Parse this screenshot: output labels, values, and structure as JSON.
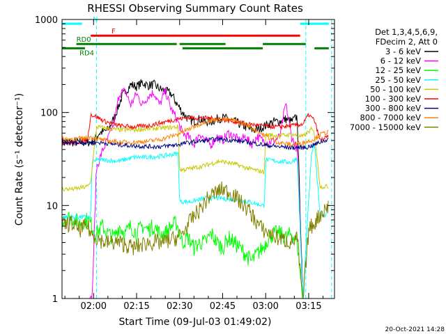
{
  "title": "RHESSI Observing Summary Count Rates",
  "xlabel": "Start Time (09-Jul-03 01:49:02)",
  "ylabel": "Count Rate (s⁻¹ detector⁻¹)",
  "footer_date": "20-Oct-2021 14:28",
  "chart_data": {
    "type": "line",
    "title": "RHESSI Observing Summary Count Rates",
    "xlabel": "Start Time (09-Jul-03 01:49:02)",
    "ylabel": "Count Rate (s⁻¹ detector⁻¹)",
    "x_unit": "minutes after 01:49:02 UT",
    "xlim": [
      0,
      95
    ],
    "ylim": [
      1,
      1000
    ],
    "yscale": "log",
    "x_ticks": [
      {
        "v": 11,
        "label": "02:00"
      },
      {
        "v": 26,
        "label": "02:15"
      },
      {
        "v": 41,
        "label": "02:30"
      },
      {
        "v": 56,
        "label": "02:45"
      },
      {
        "v": 71,
        "label": "03:00"
      },
      {
        "v": 86,
        "label": "03:15"
      }
    ],
    "y_ticks": [
      {
        "v": 1,
        "label": "1"
      },
      {
        "v": 10,
        "label": "10"
      },
      {
        "v": 100,
        "label": "100"
      },
      {
        "v": 1000,
        "label": "1000"
      }
    ],
    "legend_header": [
      "Det 1,3,4,5,6,9,",
      "FDecim 2, Att 0"
    ],
    "legend_position": "right",
    "series": [
      {
        "name": "3 - 6 keV",
        "color": "#000000",
        "x": [
          0,
          9,
          10.5,
          13,
          16,
          18,
          21,
          24,
          26,
          28,
          30,
          32,
          34,
          36,
          38,
          40,
          42,
          44,
          46,
          48,
          50,
          52,
          54,
          56,
          58,
          60,
          62,
          64,
          66,
          68,
          70,
          72,
          74,
          76,
          78,
          80,
          82,
          84
        ],
        "y": [
          48,
          48,
          48,
          60,
          65,
          85,
          150,
          200,
          190,
          210,
          195,
          200,
          180,
          170,
          160,
          125,
          100,
          85,
          80,
          85,
          80,
          80,
          85,
          88,
          85,
          80,
          75,
          70,
          65,
          65,
          70,
          75,
          80,
          80,
          85,
          80,
          90,
          0.9
        ]
      },
      {
        "name": "6 - 12 keV",
        "color": "#ff00ff",
        "x": [
          0,
          9,
          10.5,
          12,
          14,
          16,
          18,
          20,
          22,
          24,
          26,
          28,
          30,
          32,
          34,
          36,
          38,
          40,
          42,
          44,
          46,
          48,
          50,
          52,
          54,
          56,
          58,
          60,
          62,
          64,
          66,
          68,
          70,
          72,
          74,
          76,
          78,
          80,
          82,
          84
        ],
        "y": [
          0.9,
          0.9,
          1,
          25,
          38,
          52,
          75,
          160,
          170,
          120,
          160,
          120,
          150,
          165,
          120,
          170,
          110,
          85,
          60,
          55,
          45,
          60,
          50,
          45,
          55,
          50,
          60,
          55,
          50,
          55,
          45,
          55,
          50,
          48,
          50,
          55,
          125,
          55,
          40,
          0.9
        ]
      },
      {
        "name": "12 - 25 keV",
        "color": "#00ff00",
        "x": [
          0,
          3,
          6,
          9,
          10.5,
          12,
          14,
          16,
          18,
          20,
          22,
          24,
          26,
          28,
          30,
          32,
          34,
          36,
          38,
          40,
          41,
          42,
          44,
          46,
          48,
          50,
          52,
          54,
          56,
          58,
          60,
          62,
          64,
          66,
          68,
          70,
          72,
          74,
          76,
          78,
          80,
          82,
          84
        ],
        "y": [
          7,
          7.5,
          6.5,
          7,
          6,
          5,
          6,
          5,
          4.5,
          6,
          5,
          6,
          5,
          6,
          5.5,
          6,
          5,
          5,
          6,
          6.5,
          5,
          4,
          4.5,
          3.5,
          4,
          4,
          5,
          4,
          3.5,
          4.5,
          4,
          3.5,
          3,
          2.5,
          3,
          3.5,
          4.5,
          5,
          5,
          4.5,
          5,
          4,
          0.9
        ]
      },
      {
        "name": "25 - 50 keV",
        "color": "#00ffff",
        "x": [
          0,
          10,
          10.5,
          13,
          20,
          25,
          30,
          35,
          40,
          40.5,
          41,
          45,
          50,
          55,
          60,
          65,
          70,
          70.5,
          71,
          75,
          80,
          82,
          84,
          87,
          88,
          90,
          92,
          93
        ],
        "y": [
          7.5,
          7.5,
          30,
          31,
          30,
          33,
          33,
          34,
          36,
          36,
          11,
          11,
          12,
          12,
          11.5,
          11,
          10,
          10,
          31,
          30,
          29,
          33,
          1,
          37,
          45,
          8,
          8,
          9
        ]
      },
      {
        "name": "50 - 100 keV",
        "color": "#c8c800",
        "x": [
          0,
          4,
          9,
          10,
          12,
          15,
          20,
          25,
          30,
          35,
          40,
          40.5,
          41,
          45,
          50,
          55,
          60,
          65,
          70,
          70.5,
          71,
          75,
          80,
          84,
          87,
          88,
          90,
          92,
          93
        ],
        "y": [
          15,
          15,
          16,
          18,
          70,
          68,
          65,
          65,
          67,
          68,
          70,
          70,
          24,
          25,
          27,
          30,
          28,
          25,
          23,
          23,
          58,
          56,
          58,
          55,
          66,
          60,
          16,
          16,
          16
        ]
      },
      {
        "name": "100 - 300 keV",
        "color": "#ff0000",
        "x": [
          0,
          5,
          9,
          10,
          12,
          15,
          20,
          25,
          30,
          35,
          40,
          45,
          50,
          55,
          60,
          65,
          70,
          75,
          80,
          84,
          86,
          88,
          90,
          93
        ],
        "y": [
          47,
          47,
          52,
          95,
          90,
          80,
          72,
          70,
          72,
          78,
          85,
          88,
          87,
          85,
          80,
          75,
          72,
          70,
          72,
          75,
          95,
          82,
          50,
          55
        ]
      },
      {
        "name": "300 - 800 keV",
        "color": "#000080",
        "x": [
          0,
          5,
          10,
          15,
          20,
          25,
          30,
          35,
          40,
          45,
          50,
          55,
          60,
          65,
          70,
          75,
          80,
          85,
          88,
          90,
          93
        ],
        "y": [
          47,
          47,
          48,
          47,
          45,
          44,
          43,
          43,
          45,
          48,
          50,
          52,
          50,
          48,
          45,
          43,
          42,
          42,
          45,
          48,
          52
        ]
      },
      {
        "name": "800 - 7000 keV",
        "color": "#ff8000",
        "x": [
          0,
          5,
          10,
          15,
          20,
          25,
          30,
          35,
          40,
          45,
          50,
          55,
          60,
          65,
          70,
          75,
          80,
          85,
          88,
          90,
          93
        ],
        "y": [
          52,
          52,
          54,
          50,
          48,
          48,
          49,
          52,
          58,
          68,
          80,
          85,
          82,
          72,
          58,
          48,
          45,
          48,
          52,
          58,
          62
        ]
      },
      {
        "name": "7000 - 15000 keV",
        "color": "#808000",
        "x": [
          0,
          3,
          6,
          9,
          10,
          12,
          15,
          20,
          25,
          30,
          35,
          40,
          42,
          45,
          48,
          50,
          52,
          54,
          56,
          58,
          60,
          62,
          65,
          68,
          70,
          75,
          80,
          82,
          84,
          86,
          88,
          90,
          93
        ],
        "y": [
          6,
          6.5,
          5.5,
          6,
          5,
          4.5,
          4,
          4,
          3.5,
          4,
          4,
          4.5,
          5,
          7,
          9,
          11,
          13,
          14,
          15,
          14,
          13,
          11,
          9,
          6.5,
          5.5,
          4.5,
          4,
          4.5,
          0.9,
          5.5,
          6.5,
          8,
          10
        ]
      }
    ],
    "annotations": [
      {
        "label": "N",
        "color": "#00ffff",
        "x": [
          0,
          7
        ],
        "level": 900
      },
      {
        "label": "",
        "color": "#00ffff",
        "x": [
          83,
          93
        ],
        "level": 900
      },
      {
        "label": "F",
        "color": "#ff0000",
        "x": [
          10,
          83
        ],
        "level": 670
      },
      {
        "label": "RD0",
        "color": "#008000",
        "x": [
          5,
          40
        ],
        "level": 545
      },
      {
        "label": "",
        "color": "#008000",
        "x": [
          41,
          57
        ],
        "level": 545
      },
      {
        "label": "",
        "color": "#008000",
        "x": [
          70,
          85
        ],
        "level": 545
      },
      {
        "label": "RD4",
        "color": "#008000",
        "x": [
          0,
          8
        ],
        "level": 490
      },
      {
        "label": "",
        "color": "#008000",
        "x": [
          42,
          70
        ],
        "level": 490
      },
      {
        "label": "",
        "color": "#008000",
        "x": [
          88,
          93
        ],
        "level": 490
      }
    ],
    "vlines": [
      12,
      85,
      94
    ],
    "grid": false
  }
}
